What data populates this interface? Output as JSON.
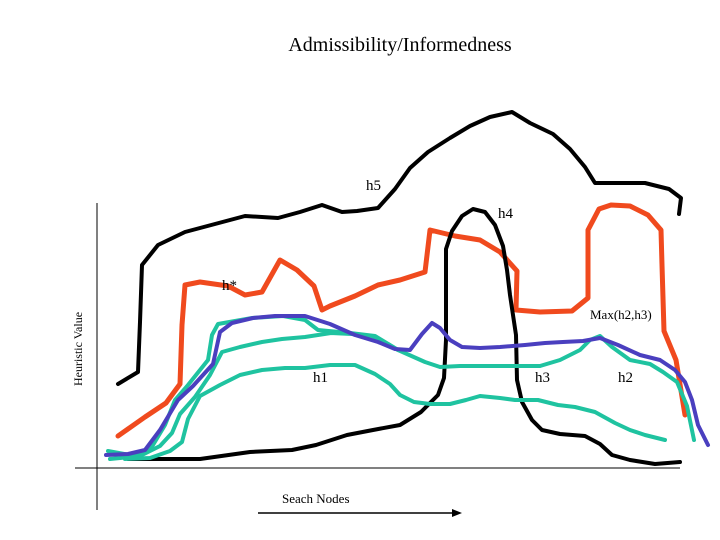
{
  "title": "Admissibility/Informedness",
  "labels": {
    "h5": "h5",
    "h4": "h4",
    "hstar": "h*",
    "max": "Max(h2,h3)",
    "h1": "h1",
    "h3": "h3",
    "h2": "h2",
    "y_axis": "Heuristic Value",
    "x_axis": "Seach Nodes"
  },
  "colors": {
    "black": "#000000",
    "red": "#f04a1e",
    "teal": "#1fc3a0",
    "blue": "#4a3fbf"
  }
}
